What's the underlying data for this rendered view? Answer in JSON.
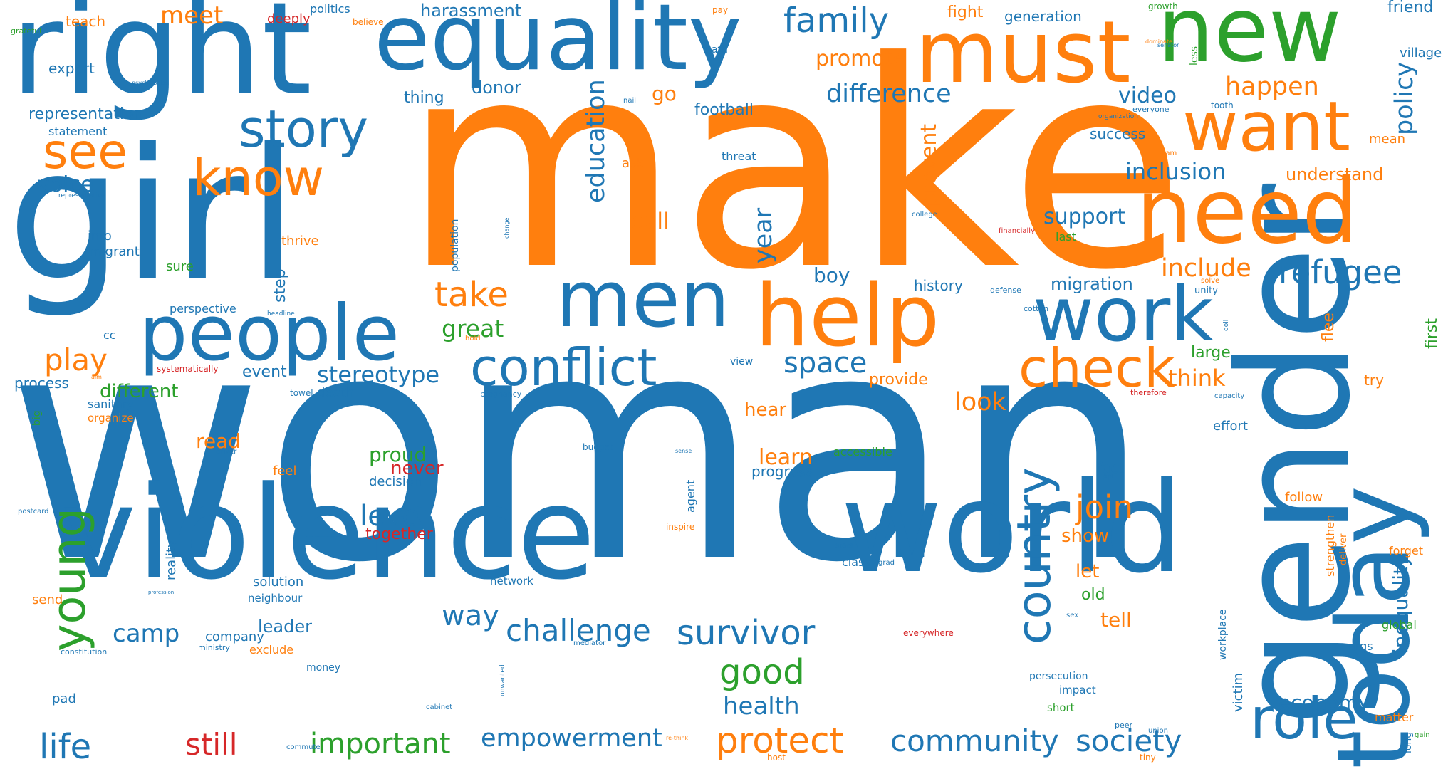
{
  "palette": {
    "blue": "#1f77b4",
    "orange": "#ff7f0e",
    "green": "#2ca02c",
    "red": "#d62728"
  },
  "words": [
    {
      "text": "woman",
      "color": "blue"
    },
    {
      "text": "make",
      "color": "orange"
    },
    {
      "text": "girl",
      "color": "blue"
    },
    {
      "text": "gender",
      "color": "blue"
    },
    {
      "text": "violence",
      "color": "blue"
    },
    {
      "text": "right",
      "color": "blue"
    },
    {
      "text": "world",
      "color": "blue"
    },
    {
      "text": "equality",
      "color": "blue"
    },
    {
      "text": "must",
      "color": "orange"
    },
    {
      "text": "new",
      "color": "green"
    },
    {
      "text": "need",
      "color": "orange"
    },
    {
      "text": "today",
      "color": "blue"
    },
    {
      "text": "help",
      "color": "orange"
    },
    {
      "text": "men",
      "color": "blue"
    },
    {
      "text": "people",
      "color": "blue"
    },
    {
      "text": "work",
      "color": "blue"
    },
    {
      "text": "want",
      "color": "orange"
    },
    {
      "text": "role",
      "color": "blue"
    },
    {
      "text": "story",
      "color": "blue"
    },
    {
      "text": "conflict",
      "color": "blue"
    },
    {
      "text": "check",
      "color": "orange"
    },
    {
      "text": "know",
      "color": "orange"
    },
    {
      "text": "see",
      "color": "orange"
    },
    {
      "text": "country",
      "color": "blue"
    },
    {
      "text": "young",
      "color": "green"
    },
    {
      "text": "survivor",
      "color": "blue"
    },
    {
      "text": "protect",
      "color": "orange"
    },
    {
      "text": "community",
      "color": "blue"
    },
    {
      "text": "society",
      "color": "blue"
    },
    {
      "text": "family",
      "color": "blue"
    },
    {
      "text": "challenge",
      "color": "blue"
    },
    {
      "text": "good",
      "color": "green"
    },
    {
      "text": "refugee",
      "color": "blue"
    },
    {
      "text": "life",
      "color": "blue"
    },
    {
      "text": "still",
      "color": "red"
    },
    {
      "text": "important",
      "color": "green"
    },
    {
      "text": "empowerment",
      "color": "blue"
    },
    {
      "text": "join",
      "color": "orange"
    },
    {
      "text": "take",
      "color": "orange"
    },
    {
      "text": "play",
      "color": "orange"
    },
    {
      "text": "space",
      "color": "blue"
    },
    {
      "text": "difference",
      "color": "blue"
    },
    {
      "text": "education",
      "color": "blue"
    },
    {
      "text": "policy",
      "color": "blue"
    },
    {
      "text": "happen",
      "color": "orange"
    },
    {
      "text": "way",
      "color": "blue"
    },
    {
      "text": "level",
      "color": "blue"
    },
    {
      "text": "stereotype",
      "color": "blue"
    },
    {
      "text": "health",
      "color": "blue"
    },
    {
      "text": "inclusion",
      "color": "blue"
    },
    {
      "text": "include",
      "color": "orange"
    },
    {
      "text": "look",
      "color": "orange"
    },
    {
      "text": "think",
      "color": "orange"
    },
    {
      "text": "camp",
      "color": "blue"
    },
    {
      "text": "great",
      "color": "green"
    },
    {
      "text": "meet",
      "color": "orange"
    },
    {
      "text": "year",
      "color": "blue"
    },
    {
      "text": "video",
      "color": "blue"
    },
    {
      "text": "support",
      "color": "blue"
    },
    {
      "text": "call",
      "color": "orange"
    },
    {
      "text": "prevent",
      "color": "orange"
    },
    {
      "text": "promote",
      "color": "orange"
    },
    {
      "text": "economy",
      "color": "blue"
    },
    {
      "text": "inequality",
      "color": "blue"
    },
    {
      "text": "learn",
      "color": "orange"
    },
    {
      "text": "proud",
      "color": "green"
    },
    {
      "text": "different",
      "color": "green"
    },
    {
      "text": "harassment",
      "color": "blue"
    },
    {
      "text": "representation",
      "color": "blue"
    },
    {
      "text": "voice",
      "color": "blue"
    },
    {
      "text": "leader",
      "color": "blue"
    },
    {
      "text": "migration",
      "color": "blue"
    },
    {
      "text": "understand",
      "color": "orange"
    },
    {
      "text": "boy",
      "color": "blue"
    },
    {
      "text": "football",
      "color": "blue"
    },
    {
      "text": "donor",
      "color": "blue"
    },
    {
      "text": "step",
      "color": "blue"
    },
    {
      "text": "event",
      "color": "blue"
    },
    {
      "text": "read",
      "color": "orange"
    },
    {
      "text": "never",
      "color": "red"
    },
    {
      "text": "together",
      "color": "red"
    },
    {
      "text": "hear",
      "color": "orange"
    },
    {
      "text": "provide",
      "color": "orange"
    },
    {
      "text": "show",
      "color": "orange"
    },
    {
      "text": "let",
      "color": "orange"
    },
    {
      "text": "tell",
      "color": "orange"
    },
    {
      "text": "old",
      "color": "green"
    },
    {
      "text": "large",
      "color": "green"
    },
    {
      "text": "flee",
      "color": "orange"
    },
    {
      "text": "try",
      "color": "orange"
    },
    {
      "text": "first",
      "color": "green"
    },
    {
      "text": "friend",
      "color": "blue"
    },
    {
      "text": "village",
      "color": "blue"
    },
    {
      "text": "mean",
      "color": "orange"
    },
    {
      "text": "success",
      "color": "blue"
    },
    {
      "text": "history",
      "color": "blue"
    },
    {
      "text": "go",
      "color": "orange"
    },
    {
      "text": "thing",
      "color": "blue"
    },
    {
      "text": "fight",
      "color": "orange"
    },
    {
      "text": "teach",
      "color": "orange"
    },
    {
      "text": "expert",
      "color": "blue"
    },
    {
      "text": "generation",
      "color": "blue"
    },
    {
      "text": "deeply",
      "color": "red"
    },
    {
      "text": "politics",
      "color": "blue"
    },
    {
      "text": "statement",
      "color": "blue"
    },
    {
      "text": "info",
      "color": "blue"
    },
    {
      "text": "migrant",
      "color": "blue"
    },
    {
      "text": "sure",
      "color": "green"
    },
    {
      "text": "thrive",
      "color": "orange"
    },
    {
      "text": "perspective",
      "color": "blue"
    },
    {
      "text": "cc",
      "color": "blue"
    },
    {
      "text": "process",
      "color": "blue"
    },
    {
      "text": "sanitary",
      "color": "blue"
    },
    {
      "text": "organize",
      "color": "orange"
    },
    {
      "text": "feel",
      "color": "orange"
    },
    {
      "text": "decision",
      "color": "blue"
    },
    {
      "text": "progress",
      "color": "blue"
    },
    {
      "text": "accessible",
      "color": "green"
    },
    {
      "text": "agent",
      "color": "blue"
    },
    {
      "text": "reality",
      "color": "blue"
    },
    {
      "text": "solution",
      "color": "blue"
    },
    {
      "text": "neighbour",
      "color": "blue"
    },
    {
      "text": "send",
      "color": "orange"
    },
    {
      "text": "company",
      "color": "blue"
    },
    {
      "text": "exclude",
      "color": "orange"
    },
    {
      "text": "money",
      "color": "blue"
    },
    {
      "text": "pad",
      "color": "blue"
    },
    {
      "text": "death",
      "color": "blue"
    },
    {
      "text": "ask",
      "color": "orange"
    },
    {
      "text": "threat",
      "color": "blue"
    },
    {
      "text": "fact",
      "color": "blue"
    },
    {
      "text": "follow",
      "color": "orange"
    },
    {
      "text": "strengthen",
      "color": "orange"
    },
    {
      "text": "forget",
      "color": "orange"
    },
    {
      "text": "global",
      "color": "green"
    },
    {
      "text": "orgs",
      "color": "blue"
    },
    {
      "text": "effort",
      "color": "blue"
    },
    {
      "text": "workplace",
      "color": "blue"
    },
    {
      "text": "victim",
      "color": "blue"
    },
    {
      "text": "impact",
      "color": "blue"
    },
    {
      "text": "persecution",
      "color": "blue"
    },
    {
      "text": "short",
      "color": "green"
    },
    {
      "text": "matter",
      "color": "orange"
    },
    {
      "text": "long",
      "color": "blue"
    },
    {
      "text": "last",
      "color": "green"
    },
    {
      "text": "population",
      "color": "blue"
    },
    {
      "text": "unity",
      "color": "blue"
    },
    {
      "text": "class",
      "color": "blue"
    },
    {
      "text": "network",
      "color": "blue"
    },
    {
      "text": "budget",
      "color": "blue"
    },
    {
      "text": "view",
      "color": "blue"
    },
    {
      "text": "big",
      "color": "green"
    },
    {
      "text": "towel",
      "color": "blue"
    },
    {
      "text": "pregnancy",
      "color": "blue"
    },
    {
      "text": "constitution",
      "color": "blue"
    },
    {
      "text": "ministry",
      "color": "blue"
    },
    {
      "text": "cabinet",
      "color": "blue"
    },
    {
      "text": "commute",
      "color": "blue"
    },
    {
      "text": "host",
      "color": "orange"
    },
    {
      "text": "tiny",
      "color": "orange"
    },
    {
      "text": "everywhere",
      "color": "red"
    },
    {
      "text": "mediator",
      "color": "blue"
    },
    {
      "text": "sex",
      "color": "blue"
    },
    {
      "text": "peer",
      "color": "blue"
    },
    {
      "text": "union",
      "color": "blue"
    },
    {
      "text": "gain",
      "color": "green"
    },
    {
      "text": "defense",
      "color": "blue"
    },
    {
      "text": "cotton",
      "color": "blue"
    },
    {
      "text": "college",
      "color": "blue"
    },
    {
      "text": "financially",
      "color": "red"
    },
    {
      "text": "tooth",
      "color": "blue"
    },
    {
      "text": "organization",
      "color": "blue"
    },
    {
      "text": "everyone",
      "color": "blue"
    },
    {
      "text": "nail",
      "color": "blue"
    },
    {
      "text": "path",
      "color": "blue"
    },
    {
      "text": "pay",
      "color": "orange"
    },
    {
      "text": "believe",
      "color": "orange"
    },
    {
      "text": "growth",
      "color": "green"
    },
    {
      "text": "senator",
      "color": "blue"
    },
    {
      "text": "dominate",
      "color": "orange"
    },
    {
      "text": "grateful",
      "color": "green"
    },
    {
      "text": "psychologist",
      "color": "blue"
    },
    {
      "text": "representative",
      "color": "blue"
    },
    {
      "text": "headline",
      "color": "blue"
    },
    {
      "text": "hold",
      "color": "orange"
    },
    {
      "text": "systematically",
      "color": "red"
    },
    {
      "text": "change",
      "color": "blue"
    },
    {
      "text": "less",
      "color": "green"
    },
    {
      "text": "dream",
      "color": "orange"
    },
    {
      "text": "solve",
      "color": "orange"
    },
    {
      "text": "doll",
      "color": "blue"
    },
    {
      "text": "therefore",
      "color": "red"
    },
    {
      "text": "capacity",
      "color": "blue"
    },
    {
      "text": "sense",
      "color": "blue"
    },
    {
      "text": "ppl",
      "color": "blue"
    },
    {
      "text": "inspire",
      "color": "orange"
    },
    {
      "text": "deliver",
      "color": "orange"
    },
    {
      "text": "grad",
      "color": "blue"
    },
    {
      "text": "stats",
      "color": "blue"
    },
    {
      "text": "postcard",
      "color": "blue"
    },
    {
      "text": "profession",
      "color": "blue"
    },
    {
      "text": "driver",
      "color": "blue"
    },
    {
      "text": "unwanted",
      "color": "blue"
    },
    {
      "text": "re-think",
      "color": "orange"
    },
    {
      "text": "aim",
      "color": "orange"
    }
  ]
}
